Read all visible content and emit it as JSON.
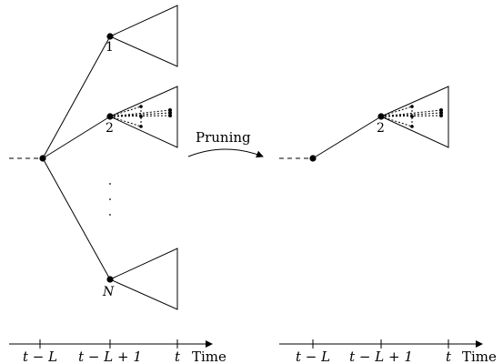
{
  "left_panel": {
    "node_labels": [
      "1",
      "2",
      "N"
    ],
    "vertical_ellipsis": "· · ·"
  },
  "right_panel": {
    "node_label": "2"
  },
  "arrow_label": "Pruning",
  "timeline_left": {
    "ticks": [
      "t − L",
      "t − L + 1",
      "t"
    ],
    "axis_label": "Time"
  },
  "timeline_right": {
    "ticks": [
      "t − L",
      "t − L + 1",
      "t"
    ],
    "axis_label": "Time"
  }
}
